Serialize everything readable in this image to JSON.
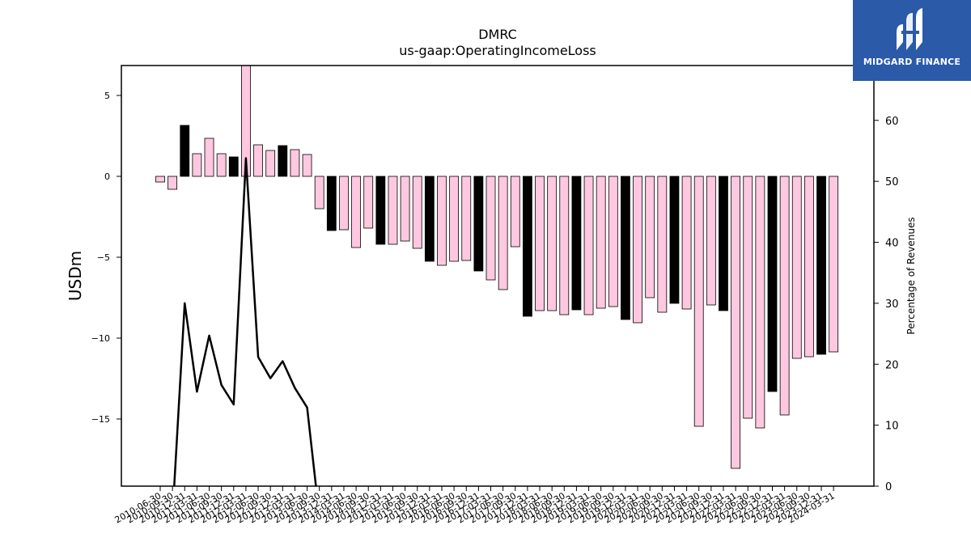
{
  "chart_data": {
    "type": "bar",
    "title": "DMRC",
    "subtitle": "us-gaap:OperatingIncomeLoss",
    "ylabel": "USDm",
    "y2label": "Percentage of Revenues",
    "ylim": [
      -19.15,
      6.85
    ],
    "y2lim": [
      0,
      69
    ],
    "yticks": [
      5,
      0,
      -5,
      -10,
      -15
    ],
    "y2ticks": [
      0,
      10,
      20,
      30,
      40,
      50,
      60
    ],
    "bar_colors": {
      "pink": "#ffc8e0",
      "black": "#000000",
      "edge": "#000000"
    },
    "line_color": "#000000",
    "categories": [
      "2010-06-30",
      "2010-09-30",
      "2010-12-31",
      "2011-03-31",
      "2011-06-30",
      "2011-09-30",
      "2011-12-31",
      "2012-03-31",
      "2012-06-30",
      "2012-09-30",
      "2012-12-31",
      "2013-03-31",
      "2013-06-30",
      "2013-09-30",
      "2013-12-31",
      "2014-03-31",
      "2014-06-30",
      "2014-09-30",
      "2014-12-31",
      "2015-03-31",
      "2015-06-30",
      "2015-09-30",
      "2015-12-31",
      "2016-03-31",
      "2016-06-30",
      "2016-09-30",
      "2016-12-31",
      "2017-03-31",
      "2017-06-30",
      "2017-09-30",
      "2017-12-31",
      "2018-03-31",
      "2018-06-30",
      "2018-09-30",
      "2018-12-31",
      "2019-03-31",
      "2019-06-30",
      "2019-09-30",
      "2019-12-31",
      "2020-03-31",
      "2020-06-30",
      "2020-09-30",
      "2020-12-31",
      "2021-03-31",
      "2021-06-30",
      "2021-09-30",
      "2021-12-31",
      "2022-03-31",
      "2022-06-30",
      "2022-09-30",
      "2022-12-31",
      "2023-03-31",
      "2023-06-30",
      "2023-09-30",
      "2023-12-31",
      "2024-03-31"
    ],
    "values": [
      -0.35,
      -0.8,
      3.15,
      1.4,
      2.35,
      1.4,
      1.2,
      7.2,
      1.95,
      1.6,
      1.9,
      1.65,
      1.35,
      -2.0,
      -3.35,
      -3.3,
      -4.4,
      -3.2,
      -4.2,
      -4.2,
      -4.0,
      -4.45,
      -5.25,
      -5.5,
      -5.25,
      -5.2,
      -5.85,
      -6.4,
      -7.0,
      -4.35,
      -8.65,
      -8.3,
      -8.3,
      -8.55,
      -8.25,
      -8.55,
      -8.15,
      -8.05,
      -8.85,
      -9.05,
      -7.5,
      -8.4,
      -7.85,
      -8.2,
      -15.45,
      -7.95,
      -8.3,
      -18.05,
      -14.95,
      -15.55,
      -13.3,
      -14.75,
      -11.25,
      -11.15,
      -11.0,
      -10.85
    ],
    "bar_kinds": [
      "pink",
      "pink",
      "black",
      "pink",
      "pink",
      "pink",
      "black",
      "pink",
      "pink",
      "pink",
      "black",
      "pink",
      "pink",
      "pink",
      "black",
      "pink",
      "pink",
      "pink",
      "black",
      "pink",
      "pink",
      "pink",
      "black",
      "pink",
      "pink",
      "pink",
      "black",
      "pink",
      "pink",
      "pink",
      "black",
      "pink",
      "pink",
      "pink",
      "black",
      "pink",
      "pink",
      "pink",
      "black",
      "pink",
      "pink",
      "pink",
      "black",
      "pink",
      "pink",
      "pink",
      "black",
      "pink",
      "pink",
      "pink",
      "black",
      "pink",
      "pink",
      "pink",
      "black",
      "pink"
    ],
    "line_series": {
      "name": "",
      "axis": "right",
      "x_index": [
        1,
        2,
        3,
        4,
        5,
        6,
        7,
        8,
        9,
        10,
        11,
        12,
        13
      ],
      "values": [
        -5,
        30,
        15.5,
        24.7,
        16.6,
        13.4,
        53.8,
        21.2,
        17.7,
        20.5,
        16.1,
        12.9,
        -5
      ]
    }
  },
  "logo": {
    "text": "MIDGARD FINANCE",
    "color": "#2a5aa8"
  }
}
